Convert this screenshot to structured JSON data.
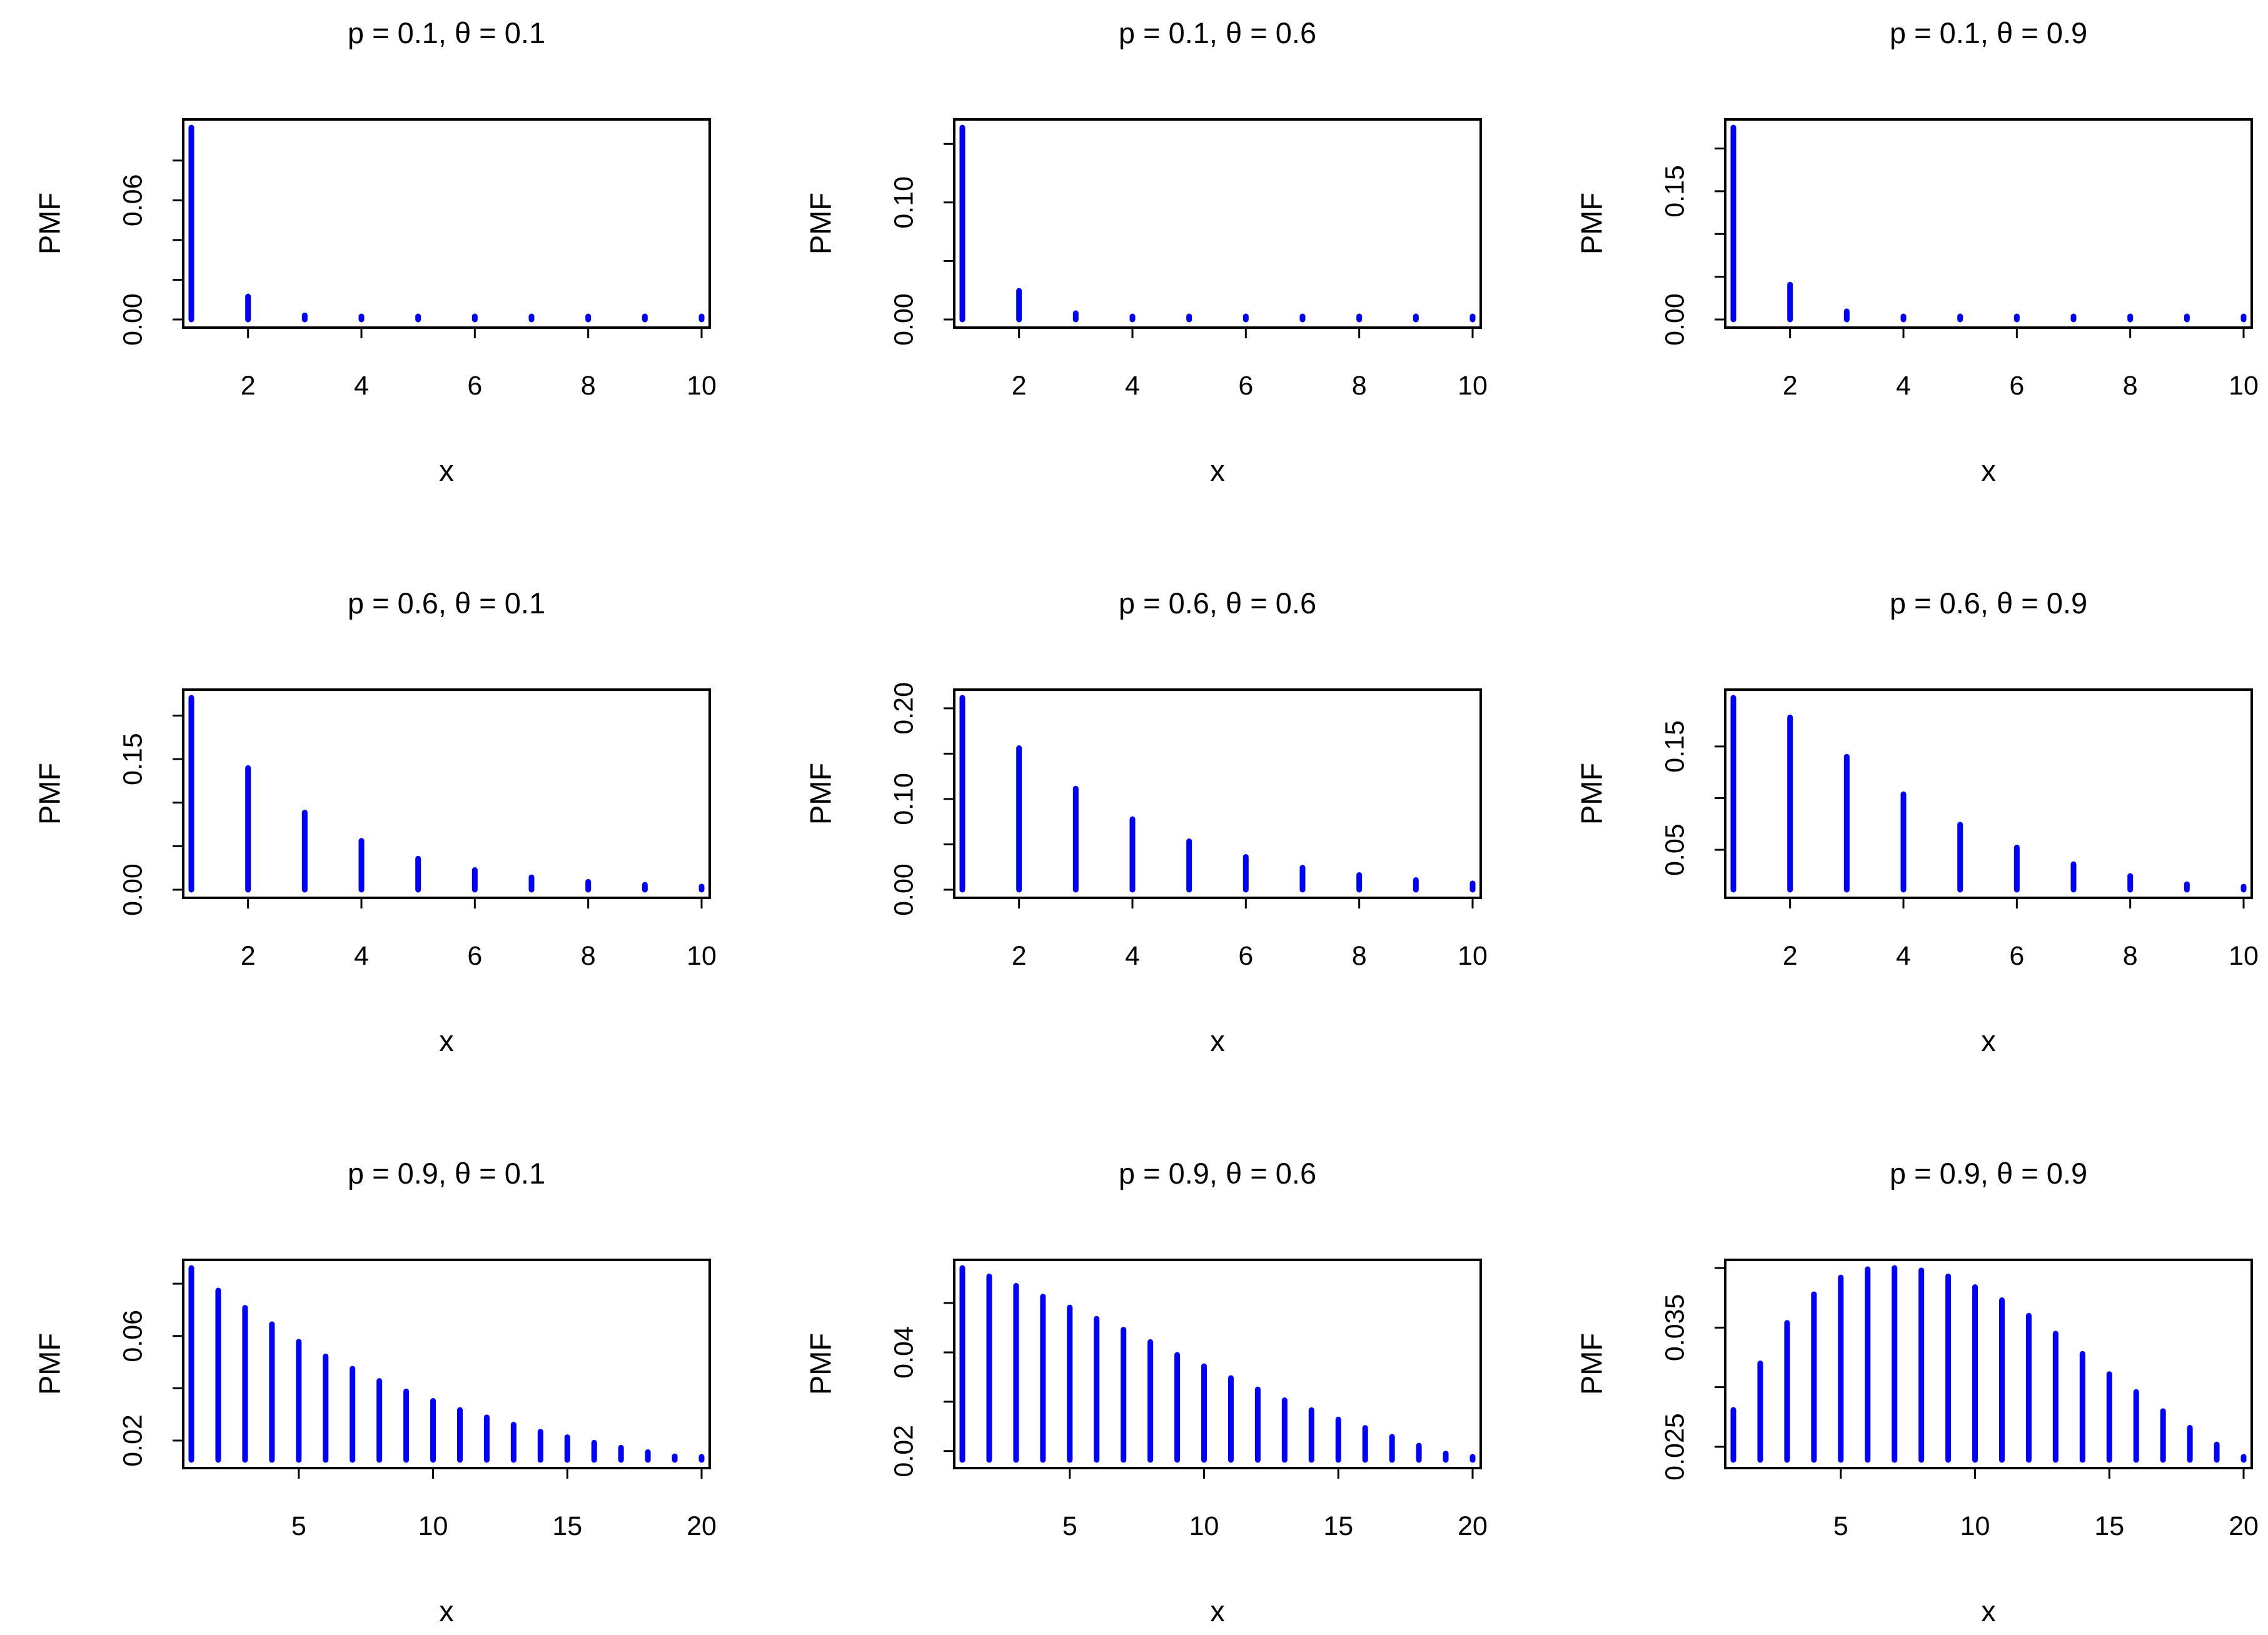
{
  "figure": {
    "layout": "3x3 grid of PMF stem plots",
    "stem_color": "#0000FF",
    "axis_color": "#000000"
  },
  "chart_data": [
    {
      "type": "bar",
      "style": "stem",
      "title": "p = 0.1, θ = 0.1",
      "xlabel": "x",
      "ylabel": "PMF",
      "x": [
        1,
        2,
        3,
        4,
        5,
        6,
        7,
        8,
        9,
        10
      ],
      "values": [
        0.0966,
        0.0116,
        0.0021,
        0.0005,
        0.0001,
        0.0,
        0.0,
        0.0,
        0.0,
        0.0
      ],
      "xlim": [
        1,
        10
      ],
      "ylim": [
        0,
        0.0966
      ],
      "xticks": [
        2,
        4,
        6,
        8,
        10
      ],
      "xtick_labels": [
        "2",
        "4",
        "6",
        "8",
        "10"
      ],
      "yticks": [
        0,
        0.02,
        0.04,
        0.06,
        0.08
      ],
      "ytick_labels": [
        "0.00",
        "",
        "",
        "0.06",
        ""
      ]
    },
    {
      "type": "bar",
      "style": "stem",
      "title": "p = 0.1, θ = 0.6",
      "xlabel": "x",
      "ylabel": "PMF",
      "x": [
        1,
        2,
        3,
        4,
        5,
        6,
        7,
        8,
        9,
        10
      ],
      "values": [
        0.164,
        0.0245,
        0.0054,
        0.0013,
        0.0004,
        0.0001,
        0.0,
        0.0,
        0.0,
        0.0
      ],
      "xlim": [
        1,
        10
      ],
      "ylim": [
        0,
        0.164
      ],
      "xticks": [
        2,
        4,
        6,
        8,
        10
      ],
      "xtick_labels": [
        "2",
        "4",
        "6",
        "8",
        "10"
      ],
      "yticks": [
        0,
        0.05,
        0.1,
        0.15
      ],
      "ytick_labels": [
        "0.00",
        "",
        "0.10",
        ""
      ]
    },
    {
      "type": "bar",
      "style": "stem",
      "title": "p = 0.1, θ = 0.9",
      "xlabel": "x",
      "ylabel": "PMF",
      "x": [
        1,
        2,
        3,
        4,
        5,
        6,
        7,
        8,
        9,
        10
      ],
      "values": [
        0.2245,
        0.0408,
        0.0096,
        0.0025,
        0.0007,
        0.0002,
        0.0001,
        0.0,
        0.0,
        0.0
      ],
      "xlim": [
        1,
        10
      ],
      "ylim": [
        0,
        0.2245
      ],
      "xticks": [
        2,
        4,
        6,
        8,
        10
      ],
      "xtick_labels": [
        "2",
        "4",
        "6",
        "8",
        "10"
      ],
      "yticks": [
        0,
        0.05,
        0.1,
        0.15,
        0.2
      ],
      "ytick_labels": [
        "0.00",
        "",
        "",
        "0.15",
        ""
      ]
    },
    {
      "type": "bar",
      "style": "stem",
      "title": "p = 0.6, θ = 0.1",
      "xlabel": "x",
      "ylabel": "PMF",
      "x": [
        1,
        2,
        3,
        4,
        5,
        6,
        7,
        8,
        9,
        10
      ],
      "values": [
        0.2205,
        0.1398,
        0.0887,
        0.0562,
        0.0357,
        0.0226,
        0.0143,
        0.0091,
        0.0058,
        0.0037
      ],
      "xlim": [
        1,
        10
      ],
      "ylim": [
        0,
        0.2205
      ],
      "xticks": [
        2,
        4,
        6,
        8,
        10
      ],
      "xtick_labels": [
        "2",
        "4",
        "6",
        "8",
        "10"
      ],
      "yticks": [
        0,
        0.05,
        0.1,
        0.15,
        0.2
      ],
      "ytick_labels": [
        "0.00",
        "",
        "",
        "0.15",
        ""
      ]
    },
    {
      "type": "bar",
      "style": "stem",
      "title": "p = 0.6, θ = 0.6",
      "xlabel": "x",
      "ylabel": "PMF",
      "x": [
        1,
        2,
        3,
        4,
        5,
        6,
        7,
        8,
        9,
        10
      ],
      "values": [
        0.2116,
        0.1561,
        0.1115,
        0.0778,
        0.0534,
        0.0362,
        0.0243,
        0.0162,
        0.0107,
        0.007
      ],
      "xlim": [
        1,
        10
      ],
      "ylim": [
        0,
        0.2116
      ],
      "xticks": [
        2,
        4,
        6,
        8,
        10
      ],
      "xtick_labels": [
        "2",
        "4",
        "6",
        "8",
        "10"
      ],
      "yticks": [
        0,
        0.05,
        0.1,
        0.15,
        0.2
      ],
      "ytick_labels": [
        "0.00",
        "",
        "0.10",
        "",
        "0.20"
      ]
    },
    {
      "type": "bar",
      "style": "stem",
      "title": "p = 0.6, θ = 0.9",
      "xlabel": "x",
      "ylabel": "PMF",
      "x": [
        1,
        2,
        3,
        4,
        5,
        6,
        7,
        8,
        9,
        10
      ],
      "values": [
        0.1971,
        0.1781,
        0.1401,
        0.1038,
        0.0744,
        0.0523,
        0.0361,
        0.0247,
        0.0168,
        0.0114
      ],
      "xlim": [
        1,
        10
      ],
      "ylim": [
        0.0114,
        0.1971
      ],
      "xticks": [
        2,
        4,
        6,
        8,
        10
      ],
      "xtick_labels": [
        "2",
        "4",
        "6",
        "8",
        "10"
      ],
      "yticks": [
        0.05,
        0.1,
        0.15
      ],
      "ytick_labels": [
        "0.05",
        "",
        "0.15"
      ]
    },
    {
      "type": "bar",
      "style": "stem",
      "title": "p = 0.9, θ = 0.1",
      "xlabel": "x",
      "ylabel": "PMF",
      "x": [
        1,
        2,
        3,
        4,
        5,
        6,
        7,
        8,
        9,
        10,
        11,
        12,
        13,
        14,
        15,
        16,
        17,
        18,
        19,
        20
      ],
      "values": [
        0.086,
        0.0774,
        0.0708,
        0.0645,
        0.0578,
        0.0522,
        0.0475,
        0.0428,
        0.0388,
        0.0352,
        0.0317,
        0.0289,
        0.0261,
        0.0234,
        0.0213,
        0.0192,
        0.0173,
        0.0156,
        0.014,
        0.0126
      ],
      "xlim": [
        1,
        20
      ],
      "ylim": [
        0.0126,
        0.086
      ],
      "xticks": [
        5,
        10,
        15,
        20
      ],
      "xtick_labels": [
        "5",
        "10",
        "15",
        "20"
      ],
      "yticks": [
        0.02,
        0.04,
        0.06,
        0.08
      ],
      "ytick_labels": [
        "0.02",
        "",
        "0.06",
        ""
      ]
    },
    {
      "type": "bar",
      "style": "stem",
      "title": "p = 0.9, θ = 0.6",
      "xlabel": "x",
      "ylabel": "PMF",
      "x": [
        1,
        2,
        3,
        4,
        5,
        6,
        7,
        8,
        9,
        10,
        11,
        12,
        13,
        14,
        15,
        16,
        17,
        18,
        19,
        20
      ],
      "values": [
        0.0571,
        0.0554,
        0.0535,
        0.0513,
        0.0491,
        0.0468,
        0.0446,
        0.0421,
        0.0395,
        0.0372,
        0.0348,
        0.0325,
        0.0303,
        0.0283,
        0.0264,
        0.0247,
        0.0229,
        0.0211,
        0.0195,
        0.0182
      ],
      "xlim": [
        1,
        20
      ],
      "ylim": [
        0.0182,
        0.0571
      ],
      "xticks": [
        5,
        10,
        15,
        20
      ],
      "xtick_labels": [
        "5",
        "10",
        "15",
        "20"
      ],
      "yticks": [
        0.02,
        0.03,
        0.04,
        0.05
      ],
      "ytick_labels": [
        "0.02",
        "",
        "0.04",
        ""
      ]
    },
    {
      "type": "bar",
      "style": "stem",
      "title": "p = 0.9, θ = 0.9",
      "xlabel": "x",
      "ylabel": "PMF",
      "x": [
        1,
        2,
        3,
        4,
        5,
        6,
        7,
        8,
        9,
        10,
        11,
        12,
        13,
        14,
        15,
        16,
        17,
        18,
        19,
        20
      ],
      "values": [
        0.0281,
        0.032,
        0.0354,
        0.0378,
        0.0392,
        0.0399,
        0.04,
        0.0398,
        0.0393,
        0.0384,
        0.0373,
        0.036,
        0.0345,
        0.0328,
        0.0311,
        0.0296,
        0.028,
        0.0266,
        0.0252,
        0.0239
      ],
      "xlim": [
        1,
        20
      ],
      "ylim": [
        0.0239,
        0.04
      ],
      "xticks": [
        5,
        10,
        15,
        20
      ],
      "xtick_labels": [
        "5",
        "10",
        "15",
        "20"
      ],
      "yticks": [
        0.025,
        0.03,
        0.035,
        0.04
      ],
      "ytick_labels": [
        "0.025",
        "",
        "0.035",
        ""
      ]
    }
  ]
}
